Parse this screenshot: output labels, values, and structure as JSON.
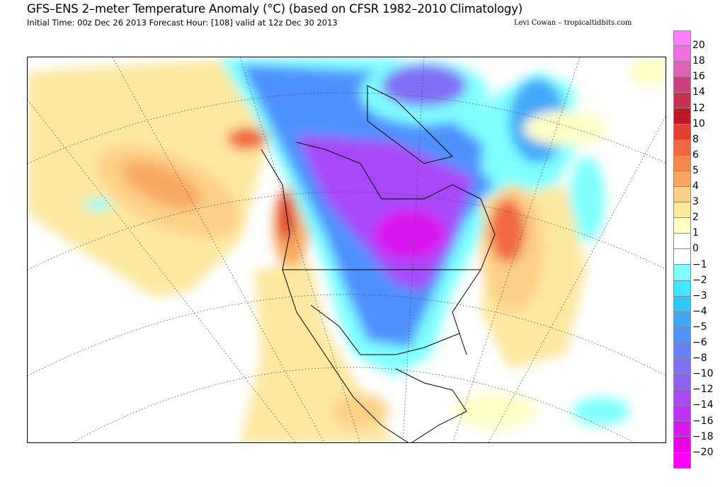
{
  "header": {
    "title": "GFS–ENS 2–meter Temperature Anomaly (°C) (based on CFSR 1982–2010 Climatology)",
    "subtitle": "Initial Time: 00z Dec 26 2013 Forecast Hour: [108] valid at 12z Dec 30 2013",
    "credit": "Levi Cowan – tropicaltidbits.com"
  },
  "colorbar": {
    "labels": [
      "20",
      "18",
      "16",
      "14",
      "12",
      "10",
      "8",
      "6",
      "5",
      "4",
      "3",
      "2",
      "1",
      "0",
      "−1",
      "−2",
      "−3",
      "−4",
      "−5",
      "−6",
      "−8",
      "−10",
      "−12",
      "−14",
      "−16",
      "−18",
      "−20"
    ],
    "colors": [
      "#ff80ff",
      "#f070e0",
      "#e060b8",
      "#d04080",
      "#c83050",
      "#c01828",
      "#e04030",
      "#f06840",
      "#f88850",
      "#f8a860",
      "#fcd088",
      "#fde8a0",
      "#ffffc8",
      "#ffffff",
      "#ffffff",
      "#80ffff",
      "#40e8ff",
      "#30c8f8",
      "#40a8f8",
      "#5090ff",
      "#6880ff",
      "#8070f8",
      "#9060f0",
      "#a848f8",
      "#c030ff",
      "#d818f0",
      "#e800e8",
      "#ff00ff"
    ]
  }
}
